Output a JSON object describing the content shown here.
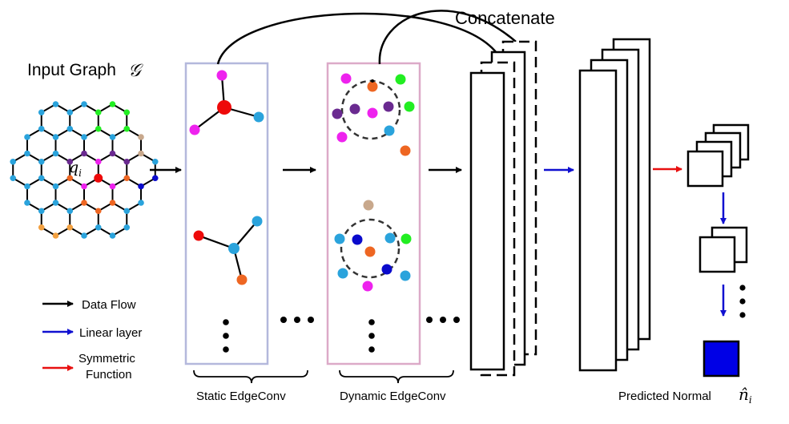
{
  "title": {
    "input_graph": "Input Graph",
    "input_graph_symbol": "𝒢",
    "concatenate": "Concatenate",
    "q_label_base": "q",
    "q_label_sub": "i"
  },
  "legend": {
    "data_flow": "Data Flow",
    "linear_layer": "Linear layer",
    "symmetric_line1": "Symmetric",
    "symmetric_line2": "Function"
  },
  "captions": {
    "static_edgeconv": "Static EdgeConv",
    "dynamic_edgeconv": "Dynamic EdgeConv",
    "predicted_normal": "Predicted Normal",
    "predicted_symbol": "n̂",
    "predicted_sub": "i"
  },
  "colors": {
    "data_flow": "#000000",
    "linear_layer": "#1010d0",
    "symmetric_function": "#e81010",
    "static_box": "#b4b8dc",
    "dynamic_box": "#dcaac8",
    "output_square": "#0000e6",
    "node_cyan": "#2aa3dc",
    "node_magenta": "#ee22ee",
    "node_green": "#22ee22",
    "node_purple": "#6a2a90",
    "node_orange": "#ee6622",
    "node_tan": "#c8a88c",
    "node_blue": "#0a0acc",
    "node_yellow": "#f2a040",
    "node_red": "#ee0a0a"
  }
}
